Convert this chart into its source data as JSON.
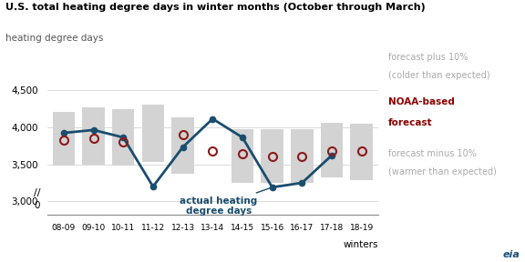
{
  "title": "U.S. total heating degree days in winter months (October through March)",
  "ylabel": "heating degree days",
  "xlabel": "winters",
  "categories": [
    "08-09",
    "09-10",
    "10-11",
    "11-12",
    "12-13",
    "13-14",
    "14-15",
    "15-16",
    "16-17",
    "17-18",
    "18-19"
  ],
  "actual": [
    3920,
    3960,
    3860,
    3200,
    3730,
    4110,
    3860,
    3190,
    3250,
    3620,
    null
  ],
  "noaa_forecast": [
    3820,
    3850,
    3800,
    null,
    3900,
    3680,
    3640,
    3610,
    3610,
    3680,
    3680
  ],
  "bar_top": [
    4200,
    4260,
    4240,
    4300,
    4130,
    null,
    3970,
    3970,
    3970,
    4060,
    4040
  ],
  "bar_bottom": [
    3480,
    3490,
    3480,
    3530,
    3370,
    null,
    3250,
    3250,
    3250,
    3320,
    3290
  ],
  "bar_color": "#d3d3d3",
  "actual_color": "#1a4d6e",
  "forecast_color": "#8b1a1a",
  "bg_color": "#ffffff",
  "annotation_plus_line1": "forecast plus 10%",
  "annotation_plus_line2": "(colder than expected)",
  "annotation_noaa_line1": "NOAA-based",
  "annotation_noaa_line2": "forecast",
  "annotation_minus_line1": "forecast minus 10%",
  "annotation_minus_line2": "(warmer than expected)",
  "annotation_actual": "actual heating\ndegree days",
  "grid_color": "#cccccc",
  "spine_color": "#888888",
  "label_color_gray": "#aaaaaa",
  "noaa_color_bold": "#8b0000"
}
